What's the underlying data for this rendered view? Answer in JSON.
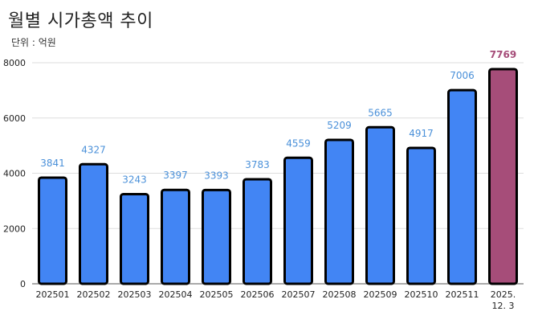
{
  "chart_data": {
    "type": "bar",
    "title": "월별 시가총액 추이",
    "subtitle": "단위 : 억원",
    "categories": [
      "202501",
      "202502",
      "202503",
      "202504",
      "202505",
      "202506",
      "202507",
      "202508",
      "202509",
      "202510",
      "202511",
      "2025.\n12. 3"
    ],
    "values": [
      3841,
      4327,
      3243,
      3397,
      3393,
      3783,
      4559,
      5209,
      5665,
      4917,
      7006,
      7769
    ],
    "ylim": [
      0,
      8000
    ],
    "yticks": [
      0,
      2000,
      4000,
      6000,
      8000
    ],
    "grid": true,
    "xlabel": "",
    "ylabel": "",
    "colors": {
      "bar": "#4285f4",
      "highlight_bar": "#a64d79",
      "bar_outline": "#000000",
      "label": "#4a90d9",
      "highlight_label": "#a64d79",
      "grid": "#dddddd"
    },
    "highlight_index": 11
  }
}
